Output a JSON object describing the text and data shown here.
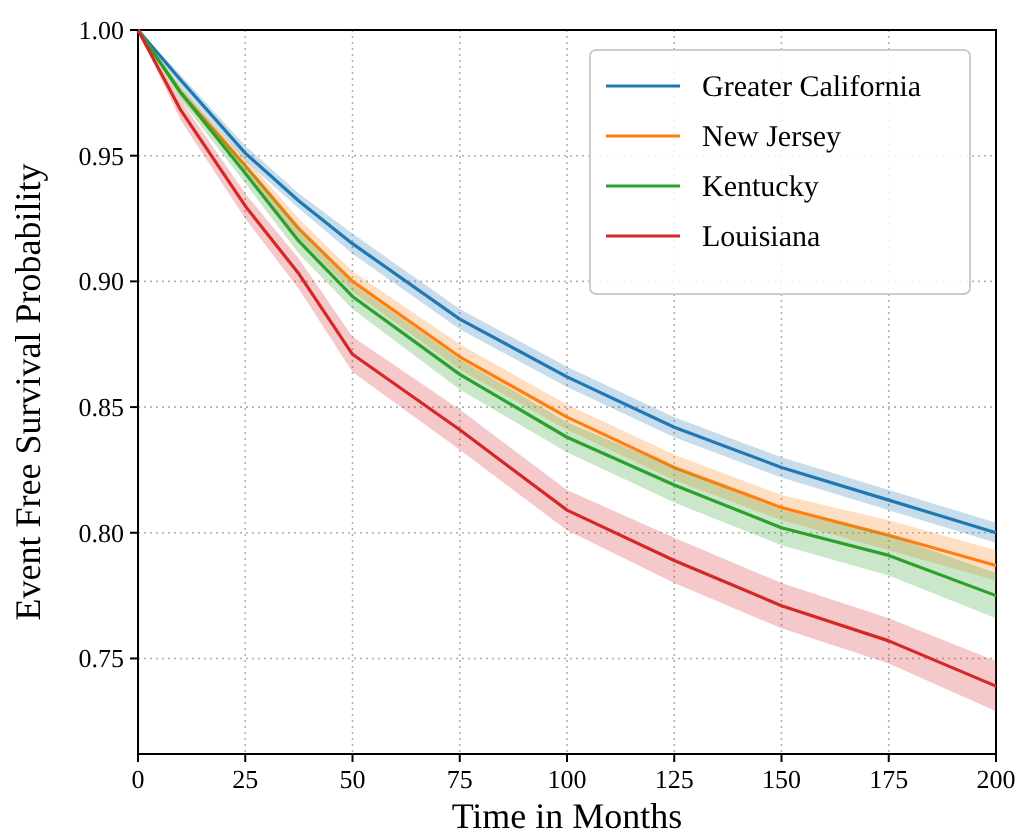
{
  "chart_data": {
    "type": "line",
    "xlabel": "Time in Months",
    "ylabel": "Event Free Survival Probability",
    "xlim": [
      0,
      200
    ],
    "xticks": [
      0,
      25,
      50,
      75,
      100,
      125,
      150,
      175,
      200
    ],
    "ylim": [
      0.712,
      1.0
    ],
    "yticks": [
      {
        "value": 0.75,
        "label": "0.75"
      },
      {
        "value": 0.8,
        "label": "0.80"
      },
      {
        "value": 0.85,
        "label": "0.85"
      },
      {
        "value": 0.9,
        "label": "0.90"
      },
      {
        "value": 0.95,
        "label": "0.95"
      },
      {
        "value": 1.0,
        "label": "1.00"
      }
    ],
    "grid": true,
    "legend": "top right",
    "line_style": "solid",
    "x": [
      0,
      10,
      25,
      37.5,
      50,
      75,
      100,
      125,
      150,
      175,
      200
    ],
    "series": [
      {
        "name": "Greater California",
        "color": "#1f77b4",
        "values": [
          1,
          0.98,
          0.951,
          0.932,
          0.915,
          0.885,
          0.862,
          0.842,
          0.826,
          0.813,
          0.8
        ],
        "lower": [
          1,
          0.978,
          0.948,
          0.929,
          0.911,
          0.881,
          0.858,
          0.838,
          0.822,
          0.809,
          0.796
        ],
        "upper": [
          1,
          0.982,
          0.954,
          0.935,
          0.919,
          0.889,
          0.866,
          0.846,
          0.83,
          0.817,
          0.804
        ]
      },
      {
        "name": "New Jersey",
        "color": "#ff7f0e",
        "values": [
          1,
          0.975,
          0.946,
          0.921,
          0.9,
          0.87,
          0.846,
          0.826,
          0.81,
          0.799,
          0.787
        ],
        "lower": [
          1,
          0.973,
          0.943,
          0.917,
          0.896,
          0.865,
          0.841,
          0.821,
          0.805,
          0.793,
          0.781
        ],
        "upper": [
          1,
          0.977,
          0.949,
          0.925,
          0.904,
          0.875,
          0.851,
          0.831,
          0.815,
          0.805,
          0.793
        ]
      },
      {
        "name": "Kentucky",
        "color": "#2ca02c",
        "values": [
          1,
          0.975,
          0.943,
          0.916,
          0.894,
          0.863,
          0.838,
          0.819,
          0.802,
          0.791,
          0.775
        ],
        "lower": [
          1,
          0.972,
          0.939,
          0.911,
          0.889,
          0.857,
          0.832,
          0.812,
          0.795,
          0.783,
          0.766
        ],
        "upper": [
          1,
          0.978,
          0.947,
          0.921,
          0.899,
          0.869,
          0.844,
          0.826,
          0.809,
          0.799,
          0.784
        ]
      },
      {
        "name": "Louisiana",
        "color": "#d62728",
        "values": [
          1,
          0.968,
          0.93,
          0.903,
          0.871,
          0.841,
          0.809,
          0.789,
          0.771,
          0.757,
          0.739
        ],
        "lower": [
          1,
          0.964,
          0.925,
          0.897,
          0.864,
          0.833,
          0.801,
          0.78,
          0.762,
          0.748,
          0.729
        ],
        "upper": [
          1,
          0.972,
          0.935,
          0.909,
          0.878,
          0.849,
          0.817,
          0.798,
          0.78,
          0.766,
          0.749
        ]
      }
    ]
  }
}
